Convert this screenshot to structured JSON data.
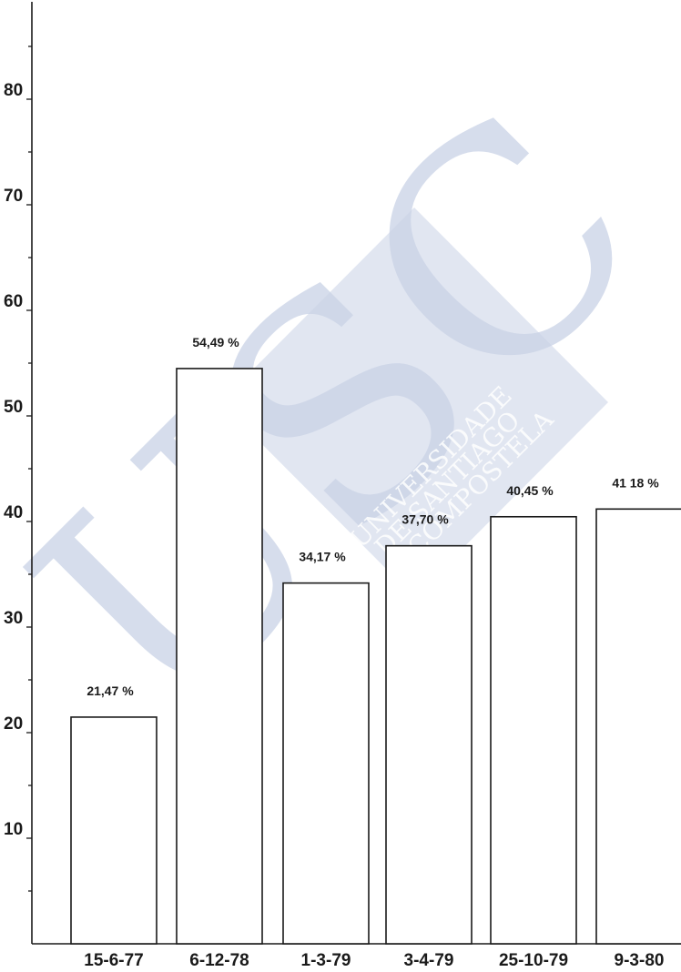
{
  "watermark": {
    "logo_text": "USC",
    "line1": "UNIVERSIDADE",
    "line2": "DE SANTIAGO",
    "line3": "DE COMPOSTELA",
    "color": "#c9d2e6"
  },
  "chart_data": {
    "type": "bar",
    "categories": [
      "15-6-77",
      "6-12-78",
      "1-3-79",
      "3-4-79",
      "25-10-79",
      "9-3-80"
    ],
    "values": [
      21.47,
      54.49,
      34.17,
      37.7,
      40.45,
      41.18
    ],
    "value_labels": [
      "21,47 %",
      "54,49 %",
      "34,17 %",
      "37,70 %",
      "40,45 %",
      "41 18 %"
    ],
    "ytick_labels": [
      "10",
      "20",
      "30",
      "40",
      "50",
      "60",
      "70",
      "80"
    ],
    "ylim": [
      0,
      90
    ],
    "grid": false,
    "bar_fill": "#ffffff",
    "ink_color": "#1a1a1a"
  }
}
